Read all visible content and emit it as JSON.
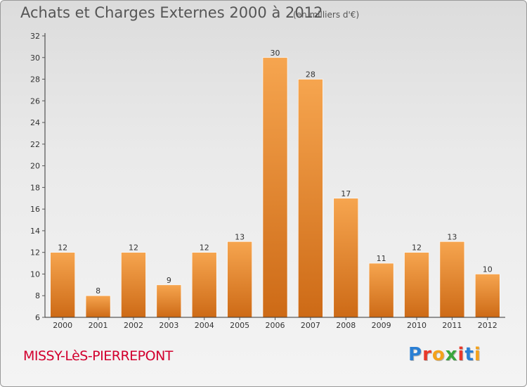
{
  "title": "Achats et Charges Externes 2000 à 2012",
  "subtitle": "(en milliers d'€)",
  "commune": "MISSY-LèS-PIERREPONT",
  "logo": {
    "letters": [
      "P",
      "r",
      "o",
      "x",
      "i",
      "t",
      "i"
    ],
    "colors": [
      "#2a7fd4",
      "#e8392a",
      "#f4a21b",
      "#3aa63c",
      "#e8392a",
      "#2a7fd4",
      "#f4a21b"
    ]
  },
  "colors": {
    "bar_light": "#f6a54f",
    "bar_dark": "#cd6a16",
    "axis": "#333333",
    "grid_tick": "#555555"
  },
  "chart_data": {
    "type": "bar",
    "categories": [
      "2000",
      "2001",
      "2002",
      "2003",
      "2004",
      "2005",
      "2006",
      "2007",
      "2008",
      "2009",
      "2010",
      "2011",
      "2012"
    ],
    "values": [
      12,
      8,
      12,
      9,
      12,
      13,
      30,
      28,
      17,
      11,
      12,
      13,
      10
    ],
    "data_labels": [
      "12",
      "8",
      "12",
      "9",
      "12",
      "13",
      "30",
      "28",
      "17",
      "11",
      "12",
      "13",
      "10"
    ],
    "ylim": [
      6,
      32
    ],
    "yticks": [
      "6",
      "8",
      "10",
      "12",
      "14",
      "16",
      "18",
      "20",
      "22",
      "24",
      "26",
      "28",
      "30",
      "32"
    ],
    "xlabel": "",
    "ylabel": "",
    "grid": false
  }
}
